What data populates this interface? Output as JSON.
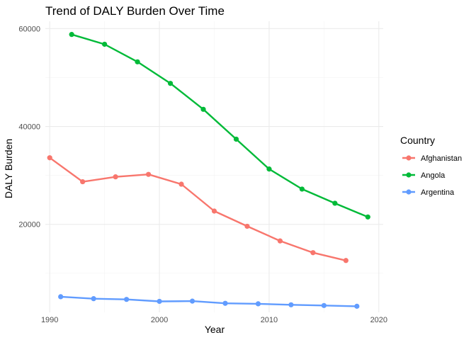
{
  "chart_data": {
    "type": "line",
    "title": "Trend of DALY Burden Over Time",
    "xlabel": "Year",
    "ylabel": "DALY Burden",
    "xlim": [
      1989.6,
      2020.4
    ],
    "ylim": [
      2000,
      61500
    ],
    "x_ticks": [
      1990,
      2000,
      2010,
      2020
    ],
    "x_tick_labels": [
      "1990",
      "2000",
      "2010",
      "2020"
    ],
    "y_ticks": [
      20000,
      40000,
      60000
    ],
    "y_tick_labels": [
      "20000",
      "40000",
      "60000"
    ],
    "grid": true,
    "legend": {
      "title": "Country",
      "position": "right"
    },
    "series": [
      {
        "name": "Afghanistan",
        "color": "#F8766D",
        "x": [
          1990,
          1993,
          1996,
          1999,
          2002,
          2005,
          2008,
          2011,
          2014,
          2017
        ],
        "y": [
          33600,
          28700,
          29700,
          30200,
          28200,
          22700,
          19600,
          16600,
          14200,
          12600
        ]
      },
      {
        "name": "Angola",
        "color": "#00BA38",
        "x": [
          1992,
          1995,
          1998,
          2001,
          2004,
          2007,
          2010,
          2013,
          2016,
          2019
        ],
        "y": [
          58800,
          56800,
          53200,
          48800,
          43500,
          37400,
          31300,
          27200,
          24300,
          21500
        ]
      },
      {
        "name": "Argentina",
        "color": "#619CFF",
        "x": [
          1991,
          1994,
          1997,
          2000,
          2003,
          2006,
          2009,
          2012,
          2015,
          2018
        ],
        "y": [
          5200,
          4800,
          4650,
          4250,
          4300,
          3850,
          3750,
          3550,
          3400,
          3250
        ]
      }
    ]
  }
}
